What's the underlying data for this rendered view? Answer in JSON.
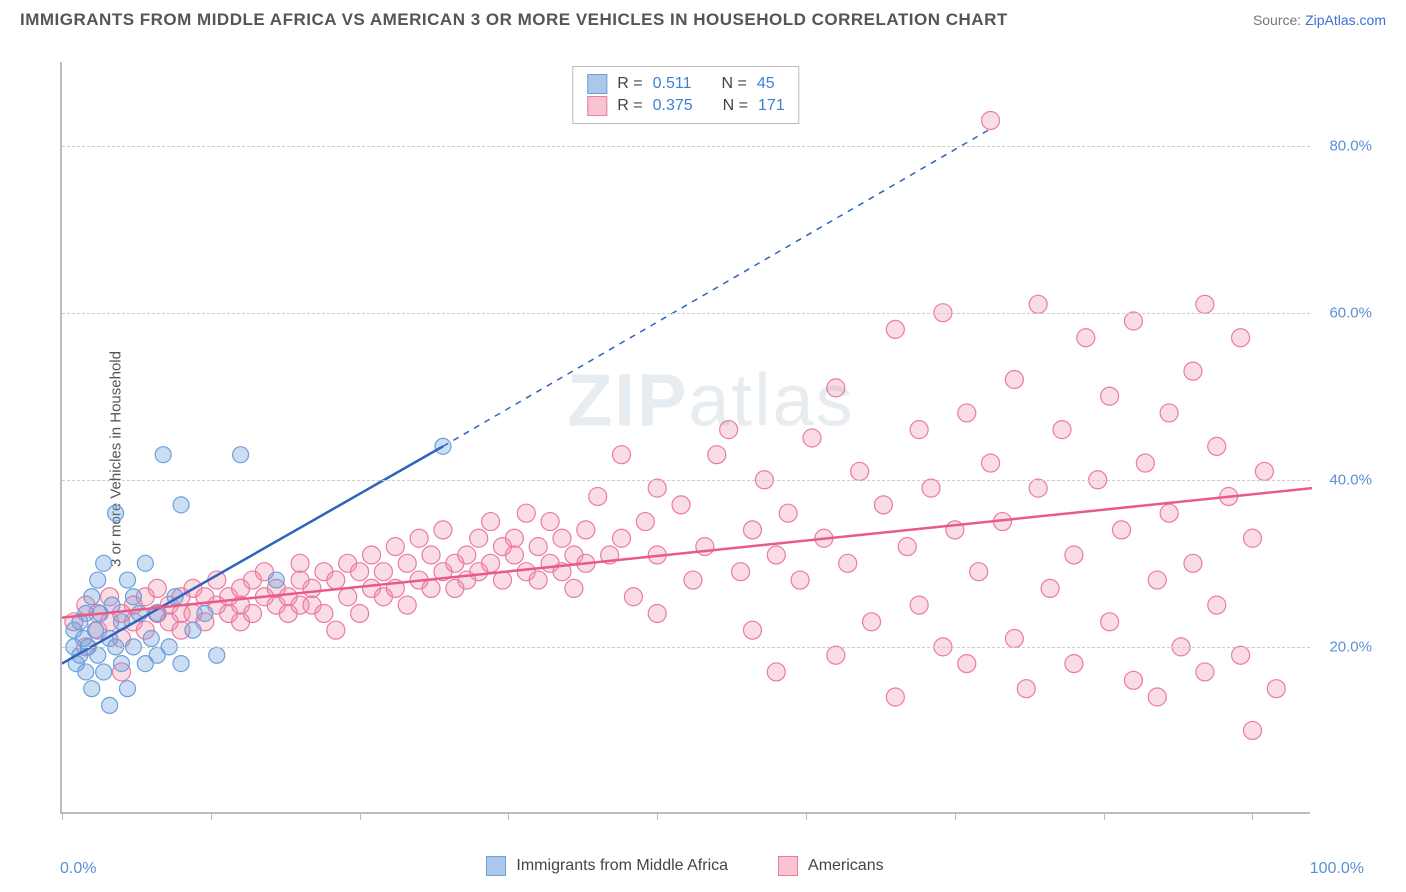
{
  "header": {
    "title": "IMMIGRANTS FROM MIDDLE AFRICA VS AMERICAN 3 OR MORE VEHICLES IN HOUSEHOLD CORRELATION CHART",
    "source_prefix": "Source: ",
    "source_link": "ZipAtlas.com"
  },
  "ylabel": "3 or more Vehicles in Household",
  "watermark": {
    "bold": "ZIP",
    "rest": "atlas"
  },
  "axes": {
    "xlim": [
      0,
      105
    ],
    "ylim": [
      0,
      90
    ],
    "x_min_label": "0.0%",
    "x_max_label": "100.0%",
    "y_ticks": [
      20,
      40,
      60,
      80
    ],
    "y_tick_labels": [
      "20.0%",
      "40.0%",
      "60.0%",
      "80.0%"
    ],
    "x_tick_positions": [
      0,
      12.5,
      25,
      37.5,
      50,
      62.5,
      75,
      87.5,
      100
    ],
    "grid_color": "#cccccc",
    "axis_color": "#bcbcbc",
    "tick_label_color": "#5b8fd6"
  },
  "series": [
    {
      "key": "immigrants",
      "label": "Immigrants from Middle Africa",
      "fill": "rgba(108,160,220,0.35)",
      "stroke": "#6ca0dc",
      "swatch_fill": "#a9c8ec",
      "swatch_border": "#6ca0dc",
      "marker_radius": 8,
      "R": "0.511",
      "N": "45",
      "trend": {
        "x1": 0,
        "y1": 18,
        "x2": 32,
        "y2": 44,
        "solid_end_x": 32,
        "dash_x2": 78,
        "dash_y2": 82,
        "color": "#2f63c0",
        "width": 2.5
      },
      "points": [
        [
          1,
          20
        ],
        [
          1,
          22
        ],
        [
          1.2,
          18
        ],
        [
          1.5,
          23
        ],
        [
          1.5,
          19
        ],
        [
          1.8,
          21
        ],
        [
          2,
          17
        ],
        [
          2,
          24
        ],
        [
          2.2,
          20
        ],
        [
          2.5,
          26
        ],
        [
          2.5,
          15
        ],
        [
          2.8,
          22
        ],
        [
          3,
          28
        ],
        [
          3,
          19
        ],
        [
          3.2,
          24
        ],
        [
          3.5,
          30
        ],
        [
          3.5,
          17
        ],
        [
          4,
          21
        ],
        [
          4,
          13
        ],
        [
          4.2,
          25
        ],
        [
          4.5,
          20
        ],
        [
          4.5,
          36
        ],
        [
          5,
          23
        ],
        [
          5,
          18
        ],
        [
          5.5,
          28
        ],
        [
          5.5,
          15
        ],
        [
          6,
          26
        ],
        [
          6,
          20
        ],
        [
          6.5,
          24
        ],
        [
          7,
          18
        ],
        [
          7,
          30
        ],
        [
          7.5,
          21
        ],
        [
          8,
          19
        ],
        [
          8,
          24
        ],
        [
          8.5,
          43
        ],
        [
          9,
          20
        ],
        [
          9.5,
          26
        ],
        [
          10,
          18
        ],
        [
          10,
          37
        ],
        [
          11,
          22
        ],
        [
          12,
          24
        ],
        [
          13,
          19
        ],
        [
          15,
          43
        ],
        [
          18,
          28
        ],
        [
          32,
          44
        ]
      ]
    },
    {
      "key": "americans",
      "label": "Americans",
      "fill": "rgba(240,140,165,0.3)",
      "stroke": "#ec7ba0",
      "swatch_fill": "#f7c3d1",
      "swatch_border": "#ec7ba0",
      "marker_radius": 9,
      "R": "0.375",
      "N": "171",
      "trend": {
        "x1": 0,
        "y1": 23.5,
        "x2": 105,
        "y2": 39,
        "color": "#e85a8a",
        "width": 2.5
      },
      "points": [
        [
          1,
          23
        ],
        [
          2,
          25
        ],
        [
          2,
          20
        ],
        [
          3,
          24
        ],
        [
          3,
          22
        ],
        [
          4,
          26
        ],
        [
          4,
          23
        ],
        [
          5,
          24
        ],
        [
          5,
          21
        ],
        [
          5,
          17
        ],
        [
          6,
          25
        ],
        [
          6,
          23
        ],
        [
          7,
          26
        ],
        [
          7,
          22
        ],
        [
          8,
          24
        ],
        [
          8,
          27
        ],
        [
          9,
          23
        ],
        [
          9,
          25
        ],
        [
          10,
          26
        ],
        [
          10,
          22
        ],
        [
          10,
          24
        ],
        [
          11,
          27
        ],
        [
          11,
          24
        ],
        [
          12,
          23
        ],
        [
          12,
          26
        ],
        [
          13,
          25
        ],
        [
          13,
          28
        ],
        [
          14,
          24
        ],
        [
          14,
          26
        ],
        [
          15,
          27
        ],
        [
          15,
          23
        ],
        [
          15,
          25
        ],
        [
          16,
          28
        ],
        [
          16,
          24
        ],
        [
          17,
          26
        ],
        [
          17,
          29
        ],
        [
          18,
          25
        ],
        [
          18,
          27
        ],
        [
          19,
          26
        ],
        [
          19,
          24
        ],
        [
          20,
          28
        ],
        [
          20,
          25
        ],
        [
          20,
          30
        ],
        [
          21,
          25
        ],
        [
          21,
          27
        ],
        [
          22,
          24
        ],
        [
          22,
          29
        ],
        [
          23,
          22
        ],
        [
          23,
          28
        ],
        [
          24,
          30
        ],
        [
          24,
          26
        ],
        [
          25,
          29
        ],
        [
          25,
          24
        ],
        [
          26,
          27
        ],
        [
          26,
          31
        ],
        [
          27,
          26
        ],
        [
          27,
          29
        ],
        [
          28,
          32
        ],
        [
          28,
          27
        ],
        [
          29,
          30
        ],
        [
          29,
          25
        ],
        [
          30,
          33
        ],
        [
          30,
          28
        ],
        [
          31,
          27
        ],
        [
          31,
          31
        ],
        [
          32,
          29
        ],
        [
          32,
          34
        ],
        [
          33,
          27
        ],
        [
          33,
          30
        ],
        [
          34,
          31
        ],
        [
          34,
          28
        ],
        [
          35,
          33
        ],
        [
          35,
          29
        ],
        [
          36,
          30
        ],
        [
          36,
          35
        ],
        [
          37,
          32
        ],
        [
          37,
          28
        ],
        [
          38,
          31
        ],
        [
          38,
          33
        ],
        [
          39,
          29
        ],
        [
          39,
          36
        ],
        [
          40,
          32
        ],
        [
          40,
          28
        ],
        [
          41,
          30
        ],
        [
          41,
          35
        ],
        [
          42,
          33
        ],
        [
          42,
          29
        ],
        [
          43,
          31
        ],
        [
          43,
          27
        ],
        [
          44,
          34
        ],
        [
          44,
          30
        ],
        [
          45,
          38
        ],
        [
          46,
          31
        ],
        [
          47,
          33
        ],
        [
          47,
          43
        ],
        [
          48,
          26
        ],
        [
          49,
          35
        ],
        [
          50,
          31
        ],
        [
          50,
          24
        ],
        [
          50,
          39
        ],
        [
          52,
          37
        ],
        [
          53,
          28
        ],
        [
          54,
          32
        ],
        [
          55,
          43
        ],
        [
          56,
          46
        ],
        [
          57,
          29
        ],
        [
          58,
          34
        ],
        [
          58,
          22
        ],
        [
          59,
          40
        ],
        [
          60,
          31
        ],
        [
          60,
          17
        ],
        [
          61,
          36
        ],
        [
          62,
          28
        ],
        [
          63,
          45
        ],
        [
          64,
          33
        ],
        [
          65,
          19
        ],
        [
          65,
          51
        ],
        [
          66,
          30
        ],
        [
          67,
          41
        ],
        [
          68,
          23
        ],
        [
          69,
          37
        ],
        [
          70,
          58
        ],
        [
          70,
          14
        ],
        [
          71,
          32
        ],
        [
          72,
          46
        ],
        [
          72,
          25
        ],
        [
          73,
          39
        ],
        [
          74,
          20
        ],
        [
          74,
          60
        ],
        [
          75,
          34
        ],
        [
          76,
          18
        ],
        [
          76,
          48
        ],
        [
          77,
          29
        ],
        [
          78,
          42
        ],
        [
          78,
          83
        ],
        [
          79,
          35
        ],
        [
          80,
          52
        ],
        [
          80,
          21
        ],
        [
          81,
          15
        ],
        [
          82,
          39
        ],
        [
          82,
          61
        ],
        [
          83,
          27
        ],
        [
          84,
          46
        ],
        [
          85,
          31
        ],
        [
          85,
          18
        ],
        [
          86,
          57
        ],
        [
          87,
          40
        ],
        [
          88,
          23
        ],
        [
          88,
          50
        ],
        [
          89,
          34
        ],
        [
          90,
          16
        ],
        [
          90,
          59
        ],
        [
          91,
          42
        ],
        [
          92,
          28
        ],
        [
          92,
          14
        ],
        [
          93,
          48
        ],
        [
          93,
          36
        ],
        [
          94,
          20
        ],
        [
          95,
          53
        ],
        [
          95,
          30
        ],
        [
          96,
          61
        ],
        [
          96,
          17
        ],
        [
          97,
          44
        ],
        [
          97,
          25
        ],
        [
          98,
          38
        ],
        [
          99,
          19
        ],
        [
          99,
          57
        ],
        [
          100,
          10
        ],
        [
          100,
          33
        ],
        [
          101,
          41
        ],
        [
          102,
          15
        ]
      ]
    }
  ],
  "legend_labels": {
    "R": "R  =",
    "N": "N  ="
  }
}
